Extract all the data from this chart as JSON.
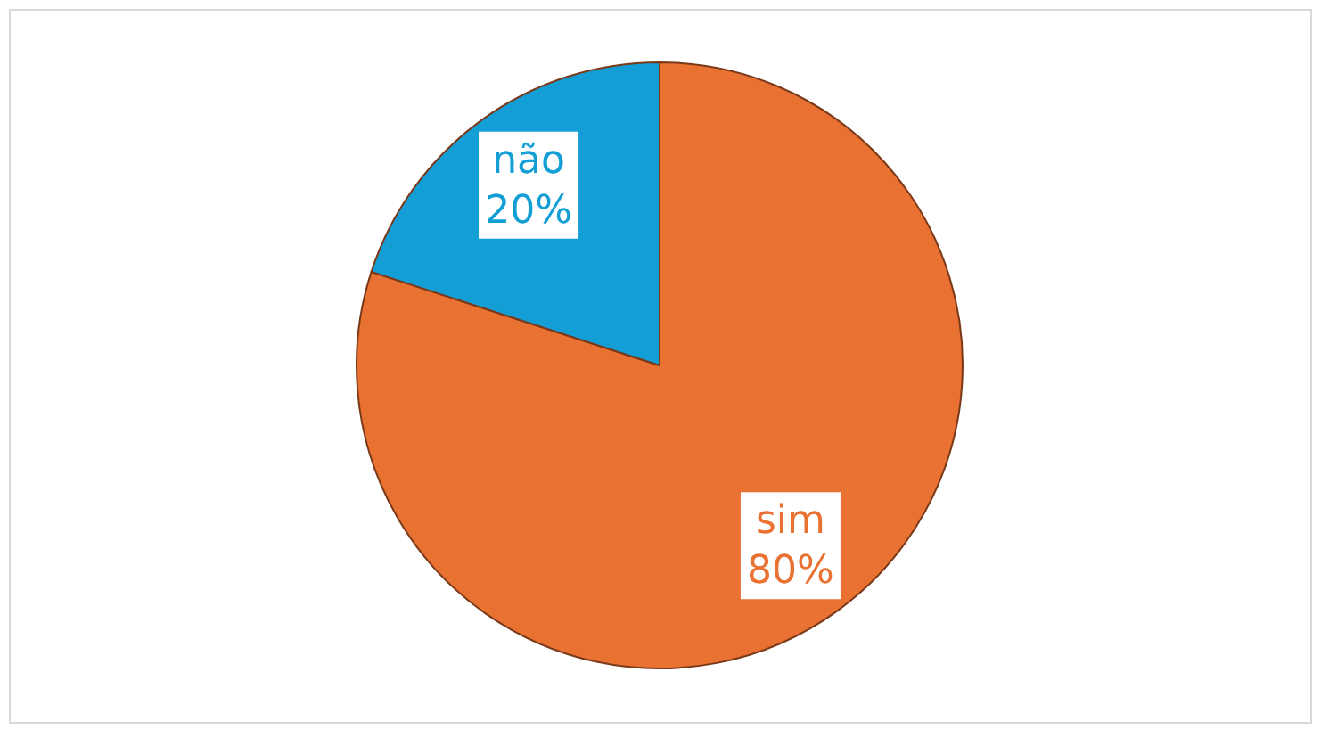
{
  "chart_data": {
    "type": "pie",
    "categories": [
      "sim",
      "não"
    ],
    "values": [
      80,
      20
    ],
    "value_labels": [
      "80%",
      "20%"
    ],
    "colors": [
      "#e97132",
      "#139fd6"
    ],
    "legend": false
  }
}
